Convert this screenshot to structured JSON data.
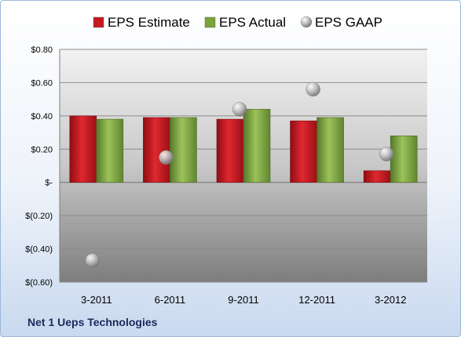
{
  "company": "Net 1 Ueps Technologies",
  "chart_data": {
    "type": "bar",
    "categories": [
      "3-2011",
      "6-2011",
      "9-2011",
      "12-2011",
      "3-2012"
    ],
    "series": [
      {
        "name": "EPS Estimate",
        "type": "bar",
        "color": "#c0141c",
        "values": [
          0.4,
          0.39,
          0.38,
          0.37,
          0.07
        ]
      },
      {
        "name": "EPS Actual",
        "type": "bar",
        "color": "#7aa33a",
        "values": [
          0.38,
          0.39,
          0.44,
          0.39,
          0.28
        ]
      },
      {
        "name": "EPS GAAP",
        "type": "scatter",
        "color": "#a8a8a8",
        "values": [
          -0.47,
          0.15,
          0.44,
          0.56,
          0.17
        ]
      }
    ],
    "ylim": [
      -0.6,
      0.8
    ],
    "yticks": [
      0.8,
      0.6,
      0.4,
      0.2,
      0,
      -0.2,
      -0.4,
      -0.6
    ],
    "ytick_labels": [
      "$0.80",
      "$0.60",
      "$0.40",
      "$0.20",
      "$-",
      "$(0.20)",
      "$(0.40)",
      "$(0.60)"
    ],
    "grid": true,
    "legend_position": "top"
  }
}
